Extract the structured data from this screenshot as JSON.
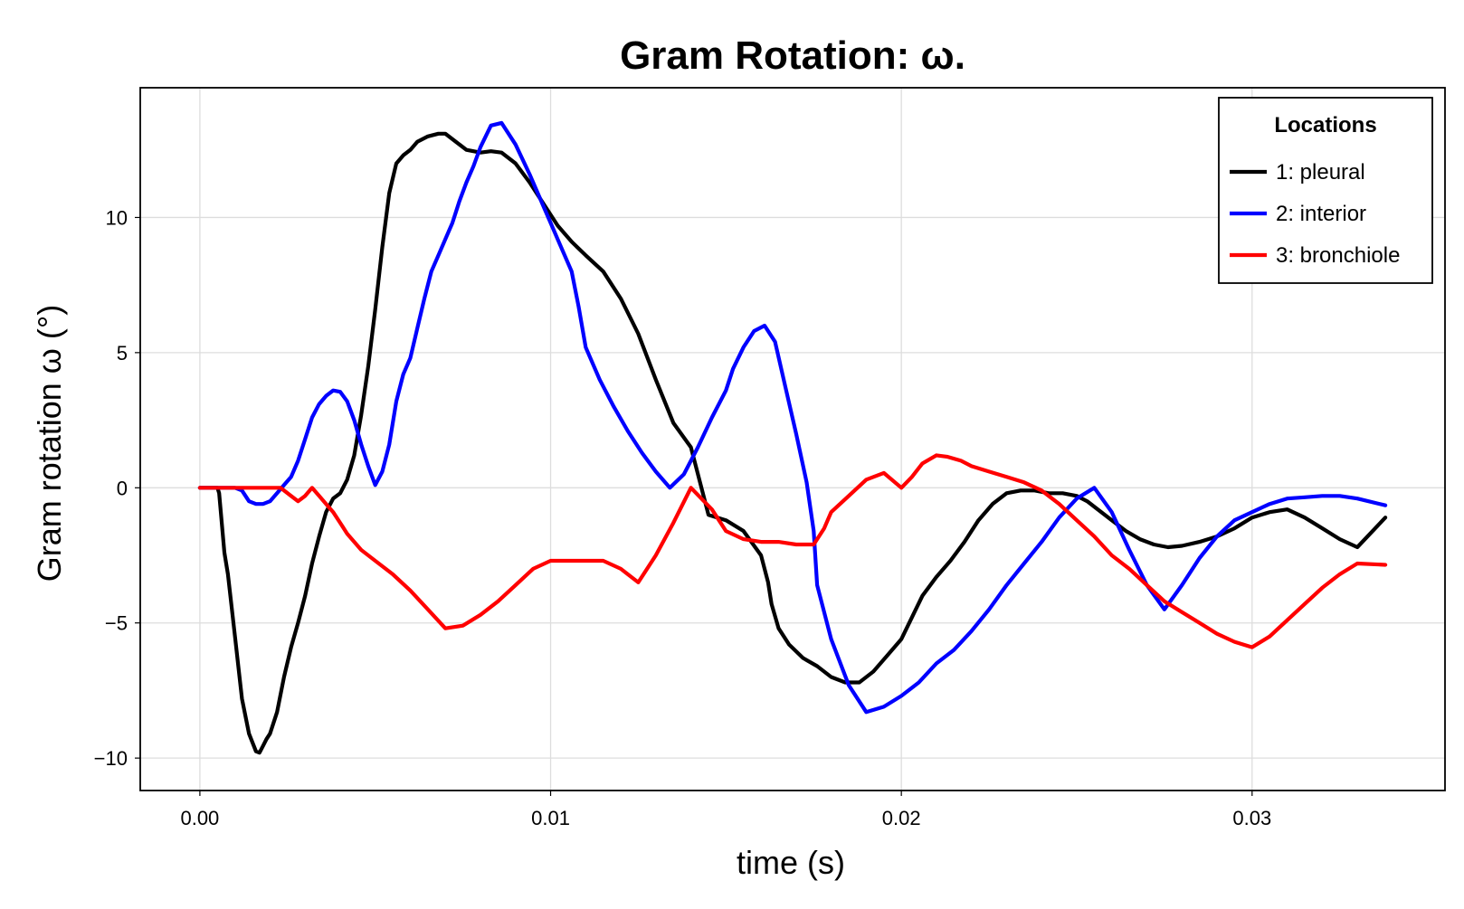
{
  "chart_data": {
    "type": "line",
    "title": "Gram Rotation: ω.",
    "xlabel": "time (s)",
    "ylabel": "Gram rotation ω (°)",
    "xlim": [
      -0.0017,
      0.0355
    ],
    "ylim": [
      -11.2,
      14.8
    ],
    "xticks": [
      0.0,
      0.01,
      0.02,
      0.03
    ],
    "xtick_labels": [
      "0.00",
      "0.01",
      "0.02",
      "0.03"
    ],
    "yticks": [
      -10,
      -5,
      0,
      5,
      10
    ],
    "ytick_labels": [
      "−10",
      "−5",
      "0",
      "5",
      "10"
    ],
    "grid": true,
    "legend": {
      "title": "Locations",
      "position": "top-right"
    },
    "series": [
      {
        "name": "1: pleural",
        "color": "#000000",
        "x": [
          0.0,
          0.0005,
          0.00055,
          0.0007,
          0.0008,
          0.001,
          0.0012,
          0.0014,
          0.0016,
          0.0017,
          0.0018,
          0.0019,
          0.002,
          0.0022,
          0.0024,
          0.0026,
          0.0028,
          0.003,
          0.0032,
          0.0034,
          0.0036,
          0.0038,
          0.004,
          0.0042,
          0.0044,
          0.0046,
          0.0048,
          0.005,
          0.0052,
          0.0054,
          0.0056,
          0.0058,
          0.006,
          0.0062,
          0.0065,
          0.0068,
          0.007,
          0.0073,
          0.0076,
          0.008,
          0.0083,
          0.0086,
          0.009,
          0.0094,
          0.0098,
          0.0102,
          0.0106,
          0.011,
          0.0115,
          0.012,
          0.0125,
          0.013,
          0.0135,
          0.014,
          0.0145,
          0.015,
          0.0155,
          0.016,
          0.0162,
          0.0163,
          0.0165,
          0.0168,
          0.0172,
          0.0176,
          0.018,
          0.0184,
          0.0188,
          0.0192,
          0.0196,
          0.02,
          0.0203,
          0.0206,
          0.021,
          0.0214,
          0.0218,
          0.0222,
          0.0226,
          0.023,
          0.0234,
          0.0238,
          0.0242,
          0.0246,
          0.025,
          0.0253,
          0.0256,
          0.026,
          0.0264,
          0.0268,
          0.0272,
          0.0276,
          0.028,
          0.0285,
          0.029,
          0.0295,
          0.03,
          0.0305,
          0.031,
          0.0315,
          0.032,
          0.0325,
          0.033,
          0.0338
        ],
        "y": [
          0.0,
          0.0,
          -0.2,
          -2.4,
          -3.2,
          -5.5,
          -7.8,
          -9.1,
          -9.75,
          -9.8,
          -9.55,
          -9.3,
          -9.1,
          -8.3,
          -7.0,
          -5.9,
          -5.0,
          -4.0,
          -2.8,
          -1.8,
          -0.9,
          -0.4,
          -0.2,
          0.3,
          1.2,
          2.7,
          4.5,
          6.6,
          8.9,
          10.9,
          12.0,
          12.3,
          12.5,
          12.8,
          13.0,
          13.1,
          13.1,
          12.8,
          12.5,
          12.4,
          12.45,
          12.4,
          12.0,
          11.3,
          10.5,
          9.7,
          9.1,
          8.6,
          8.0,
          7.0,
          5.7,
          4.0,
          2.4,
          1.5,
          -1.0,
          -1.2,
          -1.6,
          -2.5,
          -3.5,
          -4.3,
          -5.2,
          -5.8,
          -6.3,
          -6.6,
          -7.0,
          -7.2,
          -7.2,
          -6.8,
          -6.2,
          -5.6,
          -4.8,
          -4.0,
          -3.3,
          -2.7,
          -2.0,
          -1.2,
          -0.6,
          -0.2,
          -0.1,
          -0.1,
          -0.2,
          -0.2,
          -0.3,
          -0.5,
          -0.8,
          -1.2,
          -1.6,
          -1.9,
          -2.1,
          -2.2,
          -2.15,
          -2.0,
          -1.8,
          -1.5,
          -1.1,
          -0.9,
          -0.8,
          -1.1,
          -1.5,
          -1.9,
          -2.2,
          -1.1
        ],
        "y_note": ""
      },
      {
        "name": "2: interior",
        "color": "#0000ff",
        "x": [
          0.0,
          0.001,
          0.0012,
          0.0014,
          0.0016,
          0.0018,
          0.002,
          0.0022,
          0.0024,
          0.0026,
          0.0028,
          0.003,
          0.0032,
          0.0034,
          0.0036,
          0.0038,
          0.004,
          0.0042,
          0.0044,
          0.0046,
          0.0048,
          0.005,
          0.0052,
          0.0054,
          0.0056,
          0.0058,
          0.006,
          0.0062,
          0.0064,
          0.0066,
          0.0068,
          0.007,
          0.0072,
          0.0074,
          0.0076,
          0.0078,
          0.008,
          0.0083,
          0.0086,
          0.009,
          0.0094,
          0.0098,
          0.0102,
          0.0106,
          0.0108,
          0.011,
          0.0114,
          0.0118,
          0.0122,
          0.0126,
          0.013,
          0.0134,
          0.0138,
          0.0142,
          0.0146,
          0.015,
          0.0152,
          0.0155,
          0.0158,
          0.0161,
          0.0164,
          0.0167,
          0.017,
          0.0173,
          0.0175,
          0.0176,
          0.018,
          0.0185,
          0.019,
          0.0195,
          0.02,
          0.0205,
          0.021,
          0.0215,
          0.022,
          0.0225,
          0.023,
          0.0235,
          0.024,
          0.0245,
          0.025,
          0.0255,
          0.026,
          0.0265,
          0.027,
          0.0275,
          0.028,
          0.0285,
          0.029,
          0.0295,
          0.03,
          0.0305,
          0.031,
          0.0315,
          0.032,
          0.0325,
          0.033,
          0.0338
        ],
        "y": [
          0.0,
          0.0,
          -0.1,
          -0.5,
          -0.6,
          -0.6,
          -0.5,
          -0.2,
          0.1,
          0.4,
          1.0,
          1.8,
          2.6,
          3.1,
          3.4,
          3.6,
          3.55,
          3.2,
          2.5,
          1.6,
          0.8,
          0.1,
          0.6,
          1.6,
          3.2,
          4.2,
          4.8,
          5.9,
          7.0,
          8.0,
          8.6,
          9.2,
          9.8,
          10.6,
          11.3,
          11.9,
          12.6,
          13.4,
          13.5,
          12.7,
          11.6,
          10.4,
          9.2,
          8.0,
          6.7,
          5.2,
          4.0,
          3.0,
          2.1,
          1.3,
          0.6,
          0.0,
          0.5,
          1.5,
          2.6,
          3.6,
          4.4,
          5.2,
          5.8,
          6.0,
          5.4,
          3.7,
          2.0,
          0.2,
          -1.6,
          -3.6,
          -5.6,
          -7.3,
          -8.3,
          -8.1,
          -7.7,
          -7.2,
          -6.5,
          -6.0,
          -5.3,
          -4.5,
          -3.6,
          -2.8,
          -2.0,
          -1.1,
          -0.4,
          0.0,
          -0.9,
          -2.3,
          -3.6,
          -4.5,
          -3.6,
          -2.6,
          -1.8,
          -1.2,
          -0.9,
          -0.6,
          -0.4,
          -0.35,
          -0.3,
          -0.3,
          -0.4,
          -0.65
        ],
        "y_note": ""
      },
      {
        "name": "3: bronchiole",
        "color": "#ff0000",
        "x": [
          0.0,
          0.001,
          0.002,
          0.0023,
          0.0026,
          0.0028,
          0.003,
          0.0032,
          0.0034,
          0.0036,
          0.0038,
          0.004,
          0.0042,
          0.0044,
          0.0046,
          0.005,
          0.0055,
          0.006,
          0.0065,
          0.007,
          0.0075,
          0.008,
          0.0085,
          0.009,
          0.0095,
          0.01,
          0.0105,
          0.011,
          0.0115,
          0.012,
          0.0125,
          0.013,
          0.0135,
          0.014,
          0.0146,
          0.015,
          0.0155,
          0.016,
          0.0165,
          0.017,
          0.0175,
          0.0178,
          0.018,
          0.0185,
          0.019,
          0.0195,
          0.02,
          0.0203,
          0.0206,
          0.021,
          0.0213,
          0.0217,
          0.022,
          0.0225,
          0.023,
          0.0235,
          0.024,
          0.0245,
          0.025,
          0.0255,
          0.026,
          0.0265,
          0.027,
          0.0275,
          0.028,
          0.0285,
          0.029,
          0.0295,
          0.03,
          0.0305,
          0.031,
          0.0315,
          0.032,
          0.0325,
          0.033,
          0.0338
        ],
        "y": [
          0.0,
          0.0,
          0.0,
          0.0,
          -0.3,
          -0.5,
          -0.3,
          0.0,
          -0.3,
          -0.6,
          -0.9,
          -1.3,
          -1.7,
          -2.0,
          -2.3,
          -2.7,
          -3.2,
          -3.8,
          -4.5,
          -5.2,
          -5.1,
          -4.7,
          -4.2,
          -3.6,
          -3.0,
          -2.7,
          -2.7,
          -2.7,
          -2.7,
          -3.0,
          -3.5,
          -2.5,
          -1.3,
          0.0,
          -0.8,
          -1.6,
          -1.9,
          -2.0,
          -2.0,
          -2.1,
          -2.1,
          -1.5,
          -0.9,
          -0.3,
          0.3,
          0.55,
          0.0,
          0.4,
          0.9,
          1.2,
          1.15,
          1.0,
          0.8,
          0.6,
          0.4,
          0.2,
          -0.1,
          -0.6,
          -1.2,
          -1.8,
          -2.5,
          -3.0,
          -3.6,
          -4.2,
          -4.6,
          -5.0,
          -5.4,
          -5.7,
          -5.9,
          -5.5,
          -4.9,
          -4.3,
          -3.7,
          -3.2,
          -2.8,
          -2.85
        ],
        "y_note": ""
      }
    ]
  }
}
